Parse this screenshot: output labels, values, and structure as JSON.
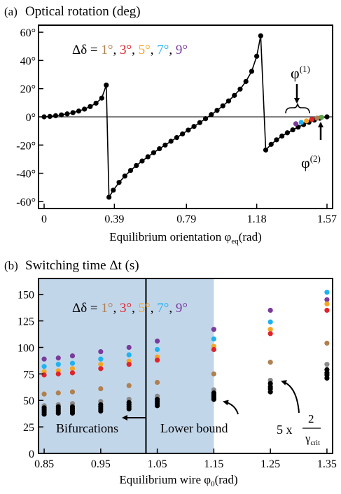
{
  "chart_data": [
    {
      "type": "scatter",
      "panel_label": "(a)",
      "title": "Optical rotation (deg)",
      "xlabel_main": "Equilibrium orientation φ",
      "xlabel_sub": "eq",
      "xlabel_unit": "(rad)",
      "xlim": [
        0,
        1.57
      ],
      "ylim": [
        -65,
        65
      ],
      "xticks": [
        0,
        0.39,
        0.79,
        1.18,
        1.57
      ],
      "xtick_labels": [
        "0",
        "0.39",
        "0.79",
        "1.18",
        "1.57"
      ],
      "yticks": [
        60,
        40,
        20,
        0,
        -20,
        -40,
        -60
      ],
      "ytick_labels": [
        "60°",
        "40°",
        "20°",
        "0°",
        "-20°",
        "-40°",
        "-60°"
      ],
      "legend_prefix": "Δδ = ",
      "legend": [
        {
          "label": "1°",
          "color": "#b08050"
        },
        {
          "label": "3°",
          "color": "#e0242a"
        },
        {
          "label": "5°",
          "color": "#f5a623"
        },
        {
          "label": "7°",
          "color": "#1fb2f0"
        },
        {
          "label": "9°",
          "color": "#7a3b9a"
        }
      ],
      "separators": [
        ",",
        ",",
        ",",
        ","
      ],
      "annotations": {
        "phi1_main": "φ",
        "phi1_sup": "(1)",
        "phi2_main": "φ",
        "phi2_sup": "(2)"
      },
      "series": [
        {
          "color": "#000000",
          "line": true,
          "x": [
            0.0,
            0.032,
            0.064,
            0.096,
            0.128,
            0.16,
            0.192,
            0.224,
            0.256,
            0.288,
            0.32,
            0.345,
            0.36,
            0.384,
            0.416,
            0.448,
            0.48,
            0.512,
            0.544,
            0.576,
            0.608,
            0.64,
            0.672,
            0.704,
            0.736,
            0.768,
            0.8,
            0.832,
            0.864,
            0.896,
            0.928,
            0.96,
            0.992,
            1.024,
            1.056,
            1.088,
            1.12,
            1.152,
            1.18,
            1.202,
            1.23,
            1.26,
            1.29,
            1.32,
            1.35,
            1.38,
            1.41,
            1.44,
            1.47,
            1.5,
            1.53,
            1.57
          ],
          "y": [
            0,
            0.3,
            0.8,
            1.4,
            2.1,
            3.0,
            4.1,
            5.5,
            7.3,
            9.7,
            13.3,
            22.5,
            -57,
            -52,
            -46.5,
            -42,
            -38,
            -34.5,
            -31.3,
            -28.3,
            -25.4,
            -22.6,
            -20,
            -17.3,
            -14.7,
            -12.1,
            -9.4,
            -6.8,
            -4.1,
            -1.3,
            1.6,
            4.6,
            7.8,
            11.3,
            15.2,
            19.7,
            25.1,
            32.3,
            43.0,
            57.5,
            -23.5,
            -19.5,
            -16.3,
            -13.6,
            -11.3,
            -9.2,
            -7.3,
            -5.5,
            -3.8,
            -2.3,
            -1.0,
            0
          ]
        }
      ],
      "phi_points": {
        "x": [
          1.397,
          1.427,
          1.456,
          1.486,
          1.515,
          1.54
        ],
        "y": [
          -4.9,
          -3.9,
          -2.9,
          -1.8,
          -0.9,
          -0.3
        ],
        "colors": [
          "#7a3b9a",
          "#1fb2f0",
          "#f5a623",
          "#e0242a",
          "#b08050",
          "#5aa64a"
        ]
      }
    },
    {
      "type": "scatter",
      "panel_label": "(b)",
      "title": "Switching time Δt (s)",
      "xlabel_main": "Equilibrium wire φ",
      "xlabel_sub": "0",
      "xlabel_unit": "(rad)",
      "xlim": [
        0.84,
        1.36
      ],
      "ylim": [
        0,
        165
      ],
      "xticks": [
        0.85,
        0.95,
        1.05,
        1.15,
        1.25,
        1.35
      ],
      "xtick_labels": [
        "0.85",
        "0.95",
        "1.05",
        "1.15",
        "1.25",
        "1.35"
      ],
      "yticks": [
        0,
        25,
        50,
        75,
        100,
        125,
        150
      ],
      "ytick_labels": [
        "0",
        "25",
        "50",
        "75",
        "100",
        "125",
        "150"
      ],
      "shaded_xrange": [
        0.84,
        1.15
      ],
      "vertical_line_x": 1.03,
      "legend_prefix": "Δδ = ",
      "legend": [
        {
          "label": "1°",
          "color": "#b08050"
        },
        {
          "label": "3°",
          "color": "#e0242a"
        },
        {
          "label": "5°",
          "color": "#f5a623"
        },
        {
          "label": "7°",
          "color": "#1fb2f0"
        },
        {
          "label": "9°",
          "color": "#7a3b9a"
        }
      ],
      "separators": [
        ",",
        ",",
        ",",
        ","
      ],
      "annotations": {
        "bifurcations": "Bifurcations",
        "lower_bound": "Lower bound",
        "formula_prefix": "5 x",
        "formula_num": "2",
        "formula_den_main": "γ",
        "formula_den_sub": "crit"
      },
      "x": [
        0.85,
        0.875,
        0.9,
        0.95,
        1.0,
        1.05,
        1.15,
        1.25,
        1.35
      ],
      "series": [
        {
          "color": "#7a3b9a",
          "values": [
            89,
            90,
            92,
            96,
            100,
            106,
            117,
            135,
            145
          ]
        },
        {
          "color": "#1fb2f0",
          "values": [
            82,
            84,
            85,
            89,
            93,
            98,
            108,
            124,
            152
          ]
        },
        {
          "color": "#f5a623",
          "values": [
            77,
            78,
            80,
            84,
            87,
            91,
            101,
            117,
            141
          ]
        },
        {
          "color": "#e0242a",
          "values": [
            74,
            75,
            76,
            80,
            84,
            88,
            98,
            113,
            135
          ]
        },
        {
          "color": "#b08050",
          "values": [
            56,
            57,
            58,
            61,
            64,
            67,
            75,
            86,
            104
          ]
        },
        {
          "color": "#8a8a8a",
          "values": [
            45,
            46,
            47,
            49,
            51,
            54,
            60,
            69,
            84
          ]
        },
        {
          "color": "#000000",
          "values": [
            43,
            44,
            44,
            46,
            48,
            51,
            57,
            66,
            79
          ]
        },
        {
          "color": "#000000",
          "values": [
            41,
            42,
            42,
            44,
            46,
            49,
            55,
            63,
            76
          ]
        },
        {
          "color": "#000000",
          "values": [
            39,
            40,
            40,
            42,
            44,
            47,
            53,
            61,
            74
          ]
        },
        {
          "color": "#000000",
          "values": [
            37,
            38,
            38,
            40,
            42,
            45,
            51,
            58,
            71
          ]
        }
      ]
    }
  ]
}
